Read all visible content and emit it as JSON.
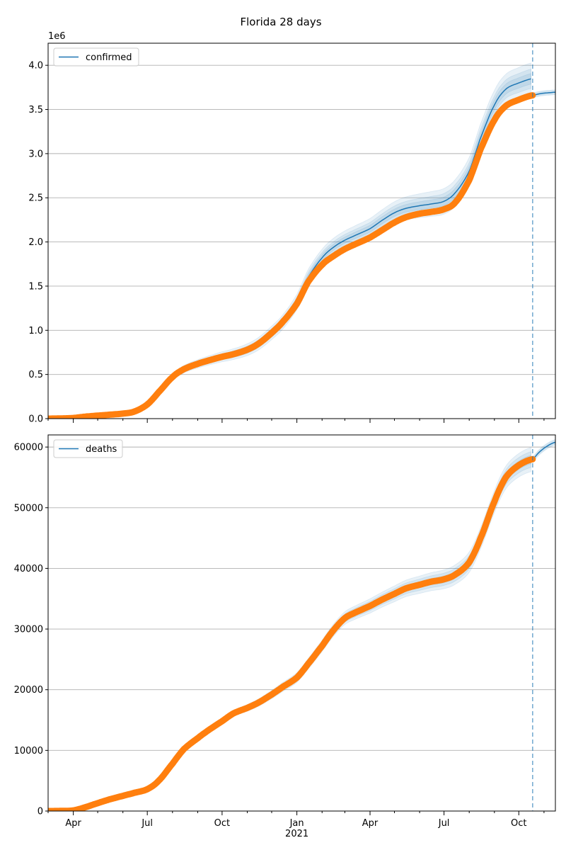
{
  "figure": {
    "title": "Florida 28 days"
  },
  "colors": {
    "model": "#1f77b4",
    "observed": "#ff7f0e",
    "band": "#1f77b4",
    "grid": "#b0b0b0"
  },
  "x_axis": {
    "ticks": [
      {
        "date": "2020-04-01",
        "label": "Apr"
      },
      {
        "date": "2020-07-01",
        "label": "Jul"
      },
      {
        "date": "2020-10-01",
        "label": "Oct"
      },
      {
        "date": "2021-01-01",
        "label": "Jan"
      },
      {
        "date": "2021-04-01",
        "label": "Apr"
      },
      {
        "date": "2021-07-01",
        "label": "Jul"
      },
      {
        "date": "2021-10-01",
        "label": "Oct"
      }
    ],
    "year_label": {
      "date": "2021-01-01",
      "label": "2021"
    },
    "range": [
      "2020-03-01",
      "2021-11-15"
    ],
    "forecast_line_date": "2021-10-18"
  },
  "chart_data": [
    {
      "type": "line",
      "legend": {
        "label": "confirmed",
        "placement": "upper-left"
      },
      "offset_label": "1e6",
      "ylim": [
        0,
        4.25
      ],
      "yticks": [
        {
          "value": 0,
          "label": "0.0"
        },
        {
          "value": 0.5,
          "label": "0.5"
        },
        {
          "value": 1.0,
          "label": "1.0"
        },
        {
          "value": 1.5,
          "label": "1.5"
        },
        {
          "value": 2.0,
          "label": "2.0"
        },
        {
          "value": 2.5,
          "label": "2.5"
        },
        {
          "value": 3.0,
          "label": "3.0"
        },
        {
          "value": 3.5,
          "label": "3.5"
        },
        {
          "value": 4.0,
          "label": "4.0"
        }
      ],
      "grid": "y",
      "observed": [
        [
          "2020-03-01",
          0.0
        ],
        [
          "2020-03-15",
          0.002
        ],
        [
          "2020-04-01",
          0.007
        ],
        [
          "2020-04-15",
          0.022
        ],
        [
          "2020-05-01",
          0.034
        ],
        [
          "2020-05-15",
          0.044
        ],
        [
          "2020-06-01",
          0.057
        ],
        [
          "2020-06-15",
          0.08
        ],
        [
          "2020-07-01",
          0.16
        ],
        [
          "2020-07-15",
          0.3
        ],
        [
          "2020-08-01",
          0.47
        ],
        [
          "2020-08-15",
          0.56
        ],
        [
          "2020-09-01",
          0.62
        ],
        [
          "2020-09-15",
          0.66
        ],
        [
          "2020-10-01",
          0.7
        ],
        [
          "2020-10-15",
          0.73
        ],
        [
          "2020-11-01",
          0.78
        ],
        [
          "2020-11-15",
          0.85
        ],
        [
          "2020-12-01",
          0.97
        ],
        [
          "2020-12-15",
          1.1
        ],
        [
          "2021-01-01",
          1.3
        ],
        [
          "2021-01-15",
          1.55
        ],
        [
          "2021-02-01",
          1.74
        ],
        [
          "2021-02-15",
          1.84
        ],
        [
          "2021-03-01",
          1.92
        ],
        [
          "2021-03-15",
          1.98
        ],
        [
          "2021-04-01",
          2.05
        ],
        [
          "2021-04-15",
          2.13
        ],
        [
          "2021-05-01",
          2.22
        ],
        [
          "2021-05-15",
          2.28
        ],
        [
          "2021-06-01",
          2.32
        ],
        [
          "2021-06-15",
          2.34
        ],
        [
          "2021-07-01",
          2.37
        ],
        [
          "2021-07-15",
          2.45
        ],
        [
          "2021-08-01",
          2.7
        ],
        [
          "2021-08-15",
          3.05
        ],
        [
          "2021-09-01",
          3.38
        ],
        [
          "2021-09-15",
          3.54
        ],
        [
          "2021-10-01",
          3.61
        ],
        [
          "2021-10-18",
          3.66
        ]
      ],
      "model": [
        [
          "2020-03-01",
          0.0
        ],
        [
          "2020-03-15",
          0.002
        ],
        [
          "2020-04-01",
          0.007
        ],
        [
          "2020-04-15",
          0.022
        ],
        [
          "2020-05-01",
          0.034
        ],
        [
          "2020-05-15",
          0.044
        ],
        [
          "2020-06-01",
          0.057
        ],
        [
          "2020-06-15",
          0.08
        ],
        [
          "2020-07-01",
          0.16
        ],
        [
          "2020-07-15",
          0.3
        ],
        [
          "2020-08-01",
          0.47
        ],
        [
          "2020-08-15",
          0.56
        ],
        [
          "2020-09-01",
          0.62
        ],
        [
          "2020-09-15",
          0.66
        ],
        [
          "2020-10-01",
          0.7
        ],
        [
          "2020-10-15",
          0.73
        ],
        [
          "2020-11-01",
          0.78
        ],
        [
          "2020-11-15",
          0.85
        ],
        [
          "2020-12-01",
          0.97
        ],
        [
          "2020-12-15",
          1.1
        ],
        [
          "2021-01-01",
          1.32
        ],
        [
          "2021-01-15",
          1.6
        ],
        [
          "2021-02-01",
          1.82
        ],
        [
          "2021-02-15",
          1.94
        ],
        [
          "2021-03-01",
          2.02
        ],
        [
          "2021-03-15",
          2.08
        ],
        [
          "2021-04-01",
          2.15
        ],
        [
          "2021-04-15",
          2.24
        ],
        [
          "2021-05-01",
          2.33
        ],
        [
          "2021-05-15",
          2.38
        ],
        [
          "2021-06-01",
          2.41
        ],
        [
          "2021-06-15",
          2.43
        ],
        [
          "2021-07-01",
          2.46
        ],
        [
          "2021-07-15",
          2.56
        ],
        [
          "2021-08-01",
          2.8
        ],
        [
          "2021-08-15",
          3.18
        ],
        [
          "2021-09-01",
          3.55
        ],
        [
          "2021-09-15",
          3.73
        ],
        [
          "2021-10-01",
          3.8
        ],
        [
          "2021-10-18",
          3.85
        ]
      ],
      "forecast": [
        [
          "2021-10-18",
          3.66
        ],
        [
          "2021-10-25",
          3.675
        ],
        [
          "2021-11-01",
          3.685
        ],
        [
          "2021-11-08",
          3.69
        ],
        [
          "2021-11-15",
          3.695
        ]
      ],
      "band_widths": [
        0.06,
        0.11,
        0.18
      ],
      "band_growth_from": "2020-07-01"
    },
    {
      "type": "line",
      "legend": {
        "label": "deaths",
        "placement": "upper-left"
      },
      "ylim": [
        0,
        62000
      ],
      "yticks": [
        {
          "value": 0,
          "label": "0"
        },
        {
          "value": 10000,
          "label": "10000"
        },
        {
          "value": 20000,
          "label": "20000"
        },
        {
          "value": 30000,
          "label": "30000"
        },
        {
          "value": 40000,
          "label": "40000"
        },
        {
          "value": 50000,
          "label": "50000"
        },
        {
          "value": 60000,
          "label": "60000"
        }
      ],
      "grid": "y",
      "observed": [
        [
          "2020-03-01",
          0
        ],
        [
          "2020-03-15",
          20
        ],
        [
          "2020-04-01",
          100
        ],
        [
          "2020-04-15",
          600
        ],
        [
          "2020-05-01",
          1300
        ],
        [
          "2020-05-15",
          1900
        ],
        [
          "2020-06-01",
          2500
        ],
        [
          "2020-06-15",
          3000
        ],
        [
          "2020-07-01",
          3600
        ],
        [
          "2020-07-15",
          5000
        ],
        [
          "2020-08-01",
          7800
        ],
        [
          "2020-08-15",
          10200
        ],
        [
          "2020-09-01",
          12000
        ],
        [
          "2020-09-15",
          13400
        ],
        [
          "2020-10-01",
          14800
        ],
        [
          "2020-10-15",
          16100
        ],
        [
          "2020-11-01",
          17000
        ],
        [
          "2020-11-15",
          17900
        ],
        [
          "2020-12-01",
          19200
        ],
        [
          "2020-12-15",
          20500
        ],
        [
          "2021-01-01",
          22000
        ],
        [
          "2021-01-15",
          24300
        ],
        [
          "2021-02-01",
          27200
        ],
        [
          "2021-02-15",
          29800
        ],
        [
          "2021-03-01",
          31800
        ],
        [
          "2021-03-15",
          32800
        ],
        [
          "2021-04-01",
          33800
        ],
        [
          "2021-04-15",
          34800
        ],
        [
          "2021-05-01",
          35800
        ],
        [
          "2021-05-15",
          36700
        ],
        [
          "2021-06-01",
          37300
        ],
        [
          "2021-06-15",
          37800
        ],
        [
          "2021-07-01",
          38200
        ],
        [
          "2021-07-15",
          39000
        ],
        [
          "2021-08-01",
          41000
        ],
        [
          "2021-08-15",
          45000
        ],
        [
          "2021-09-01",
          51000
        ],
        [
          "2021-09-15",
          55000
        ],
        [
          "2021-10-01",
          57000
        ],
        [
          "2021-10-18",
          58000
        ]
      ],
      "model": [
        [
          "2020-03-01",
          0
        ],
        [
          "2020-03-15",
          20
        ],
        [
          "2020-04-01",
          100
        ],
        [
          "2020-04-15",
          600
        ],
        [
          "2020-05-01",
          1300
        ],
        [
          "2020-05-15",
          1900
        ],
        [
          "2020-06-01",
          2500
        ],
        [
          "2020-06-15",
          3000
        ],
        [
          "2020-07-01",
          3600
        ],
        [
          "2020-07-15",
          5000
        ],
        [
          "2020-08-01",
          7800
        ],
        [
          "2020-08-15",
          10200
        ],
        [
          "2020-09-01",
          12000
        ],
        [
          "2020-09-15",
          13400
        ],
        [
          "2020-10-01",
          14800
        ],
        [
          "2020-10-15",
          16100
        ],
        [
          "2020-11-01",
          17000
        ],
        [
          "2020-11-15",
          17900
        ],
        [
          "2020-12-01",
          19200
        ],
        [
          "2020-12-15",
          20500
        ],
        [
          "2021-01-01",
          22000
        ],
        [
          "2021-01-15",
          24300
        ],
        [
          "2021-02-01",
          27200
        ],
        [
          "2021-02-15",
          29800
        ],
        [
          "2021-03-01",
          31800
        ],
        [
          "2021-03-15",
          32800
        ],
        [
          "2021-04-01",
          33800
        ],
        [
          "2021-04-15",
          34800
        ],
        [
          "2021-05-01",
          35800
        ],
        [
          "2021-05-15",
          36700
        ],
        [
          "2021-06-01",
          37300
        ],
        [
          "2021-06-15",
          37800
        ],
        [
          "2021-07-01",
          38200
        ],
        [
          "2021-07-15",
          39000
        ],
        [
          "2021-08-01",
          41000
        ],
        [
          "2021-08-15",
          45000
        ],
        [
          "2021-09-01",
          51000
        ],
        [
          "2021-09-15",
          55000
        ],
        [
          "2021-10-01",
          57000
        ],
        [
          "2021-10-18",
          58000
        ]
      ],
      "forecast": [
        [
          "2021-10-18",
          58000
        ],
        [
          "2021-10-25",
          59000
        ],
        [
          "2021-11-01",
          59800
        ],
        [
          "2021-11-08",
          60400
        ],
        [
          "2021-11-15",
          60800
        ]
      ],
      "band_widths": [
        700,
        1300,
        2000
      ],
      "band_growth_from": "2020-09-01"
    }
  ]
}
